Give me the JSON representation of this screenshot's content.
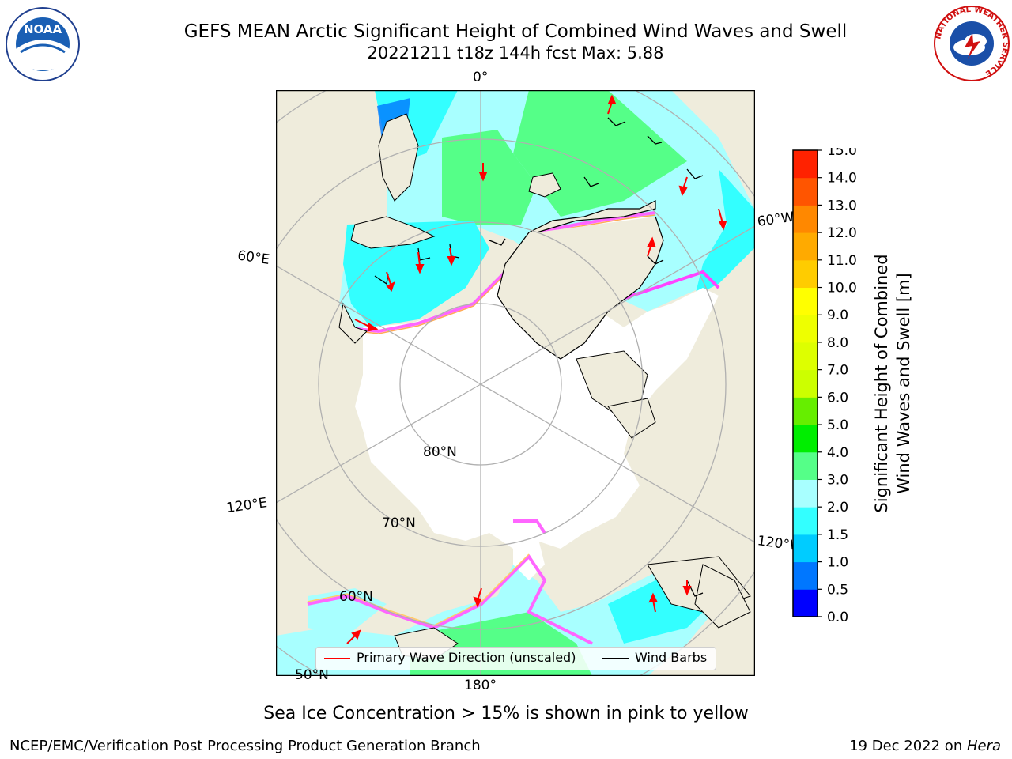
{
  "header": {
    "title": "GEFS MEAN Arctic Significant Height of Combined Wind Waves and Swell",
    "subtitle": "20221211 t18z 144h fcst   Max: 5.88"
  },
  "logos": {
    "left": {
      "name": "noaa-logo",
      "text": "NOAA"
    },
    "right": {
      "name": "national-weather-service-logo",
      "text": "NATIONAL WEATHER SERVICE"
    }
  },
  "map": {
    "projection": "north-polar-stereographic",
    "lon_labels": [
      "0°",
      "60°W",
      "120°W",
      "180°",
      "120°E",
      "60°E"
    ],
    "lat_labels": [
      "80°N",
      "70°N",
      "60°N",
      "50°N"
    ],
    "colors": {
      "land": "#efecdc",
      "ice": "#ffffff",
      "grid": "#b0b0b0",
      "coast": "#000000"
    }
  },
  "legend": {
    "items": [
      {
        "label": "Primary Wave Direction (unscaled)",
        "color": "#ff0000"
      },
      {
        "label": "Wind Barbs",
        "color": "#000000"
      }
    ]
  },
  "colorbar": {
    "label_line1": "Significant Height of Combined",
    "label_line2": "Wind Waves and Swell [m]",
    "ticks": [
      "0.0",
      "0.5",
      "1.0",
      "1.5",
      "2.0",
      "3.0",
      "4.0",
      "5.0",
      "6.0",
      "7.0",
      "8.0",
      "9.0",
      "10.0",
      "11.0",
      "12.0",
      "13.0",
      "14.0",
      "15.0"
    ],
    "colors": [
      "#0000ff",
      "#0077ff",
      "#00ccff",
      "#33ffff",
      "#a8ffff",
      "#55ff88",
      "#00ee00",
      "#66ee00",
      "#ccff00",
      "#ddff00",
      "#eeff00",
      "#ffff00",
      "#ffcc00",
      "#ffaa00",
      "#ff8800",
      "#ff5500",
      "#ff2200"
    ]
  },
  "footer": {
    "note": "Sea Ice Concentration > 15% is shown in pink to yellow",
    "org": "NCEP/EMC/Verification Post Processing Product Generation Branch",
    "date": "19 Dec 2022 on ",
    "machine": "Hera"
  }
}
